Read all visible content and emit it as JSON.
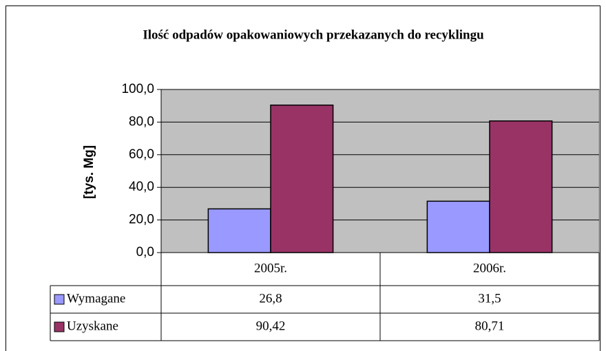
{
  "chart_data": {
    "type": "bar",
    "title": "Ilość odpadów opakowaniowych przekazanych do recyklingu",
    "y_label": "[tys. Mg]",
    "categories": [
      "2005r.",
      "2006r."
    ],
    "series": [
      {
        "name": "Wymagane",
        "color": "#9999ff",
        "values": [
          26.8,
          31.5
        ],
        "value_labels": [
          "26,8",
          "31,5"
        ]
      },
      {
        "name": "Uzyskane",
        "color": "#993366",
        "values": [
          90.42,
          80.71
        ],
        "value_labels": [
          "90,42",
          "80,71"
        ]
      }
    ],
    "ylim": [
      0,
      100
    ],
    "yticks": [
      {
        "value": 0,
        "label": "0,0"
      },
      {
        "value": 20,
        "label": "20,0"
      },
      {
        "value": 40,
        "label": "40,0"
      },
      {
        "value": 60,
        "label": "60,0"
      },
      {
        "value": 80,
        "label": "80,0"
      },
      {
        "value": 100,
        "label": "100,0"
      }
    ],
    "grid": true,
    "plot_background": "#c0c0c0",
    "data_table": true
  }
}
